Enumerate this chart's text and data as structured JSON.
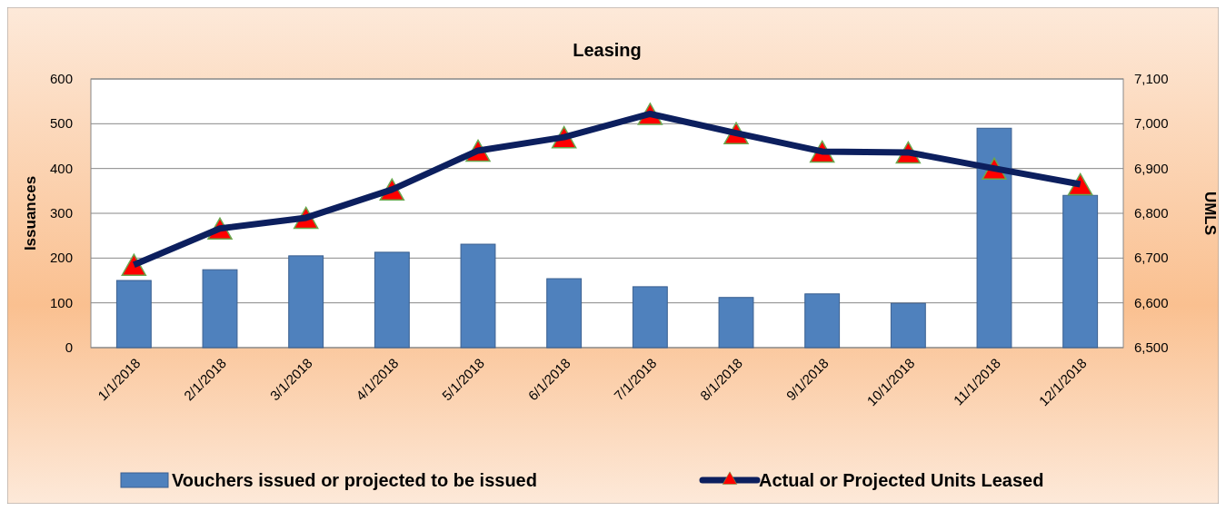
{
  "chart_data": {
    "type": "bar",
    "title": "Leasing",
    "ylabel": "Issuances",
    "y2label": "UMLS",
    "categories": [
      "1/1/2018",
      "2/1/2018",
      "3/1/2018",
      "4/1/2018",
      "5/1/2018",
      "6/1/2018",
      "7/1/2018",
      "8/1/2018",
      "9/1/2018",
      "10/1/2018",
      "11/1/2018",
      "12/1/2018"
    ],
    "series": [
      {
        "name": "Vouchers issued or projected to be issued",
        "color": "#4f81bd",
        "values": [
          150,
          174,
          205,
          213,
          231,
          154,
          136,
          112,
          120,
          99,
          490,
          340
        ]
      },
      {
        "type": "scatter",
        "axis": "y2",
        "color": "#ff0000",
        "marker": "triangle",
        "values": [
          6685,
          6766,
          6790,
          6853,
          6940,
          6970,
          7022,
          6979,
          6938,
          6936,
          6900,
          6865
        ]
      },
      {
        "name": "Actual or Projected Units Leased",
        "type": "line",
        "axis": "y2",
        "color": "#0c1f5e",
        "values": [
          6685,
          6766,
          6790,
          6853,
          6940,
          6970,
          7022,
          6979,
          6938,
          6936,
          6900,
          6865
        ]
      }
    ],
    "ylim": [
      0,
      600
    ],
    "yticks": [
      0,
      100,
      200,
      300,
      400,
      500,
      600
    ],
    "y2lim": [
      6500,
      7100
    ],
    "y2ticks": [
      {
        "value": 6500,
        "label": "6,500"
      },
      {
        "value": 6600,
        "label": "6,600"
      },
      {
        "value": 6700,
        "label": "6,700"
      },
      {
        "value": 6800,
        "label": "6,800"
      },
      {
        "value": 6900,
        "label": "6,900"
      },
      {
        "value": 7000,
        "label": "7,000"
      },
      {
        "value": 7100,
        "label": "7,100"
      }
    ],
    "grid": "y",
    "legend": "bottom"
  }
}
